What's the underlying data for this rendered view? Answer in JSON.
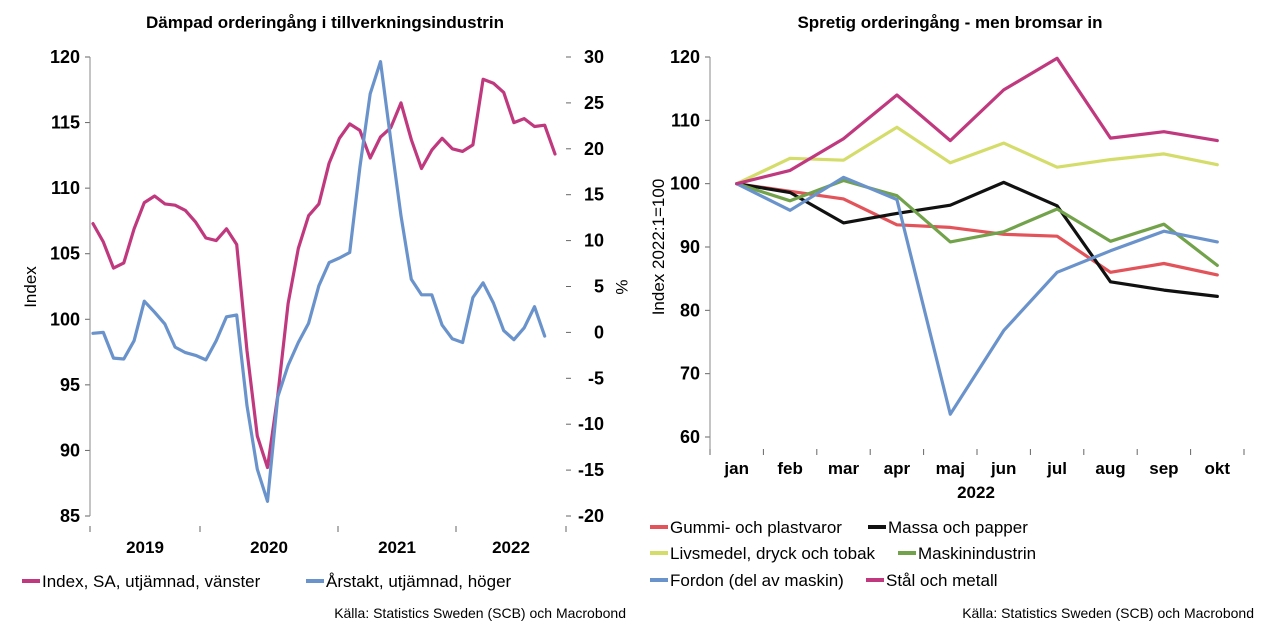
{
  "chart_data": [
    {
      "type": "line",
      "title": "Dämpad orderingång i tillverkningsindustrin",
      "ylabel": "Index",
      "y2label": "%",
      "ylim": [
        85,
        120
      ],
      "y2lim": [
        -20,
        30
      ],
      "yticks": [
        "120",
        "115",
        "110",
        "105",
        "100",
        "95",
        "90",
        "85"
      ],
      "y2ticks": [
        "30",
        "25",
        "20",
        "15",
        "10",
        "5",
        "0",
        "-5",
        "-10",
        "-15",
        "-20"
      ],
      "x_labels": [
        "2019",
        "2020",
        "2021",
        "2022"
      ],
      "series": [
        {
          "name": "Index, SA, utjämnad, vänster",
          "axis": "left",
          "color": "#c0397f",
          "values": [
            107.3,
            105.9,
            103.9,
            104.3,
            106.9,
            108.9,
            109.4,
            108.8,
            108.7,
            108.3,
            107.4,
            106.2,
            106.0,
            106.9,
            105.7,
            97.6,
            91.1,
            88.7,
            94.2,
            101.2,
            105.4,
            107.9,
            108.8,
            111.9,
            113.8,
            114.9,
            114.4,
            112.3,
            113.9,
            114.6,
            116.5,
            113.7,
            111.5,
            112.9,
            113.8,
            113.0,
            112.8,
            113.3,
            118.3,
            118.0,
            117.3,
            115.0,
            115.3,
            114.7,
            114.8,
            112.6
          ]
        },
        {
          "name": "Årstakt, utjämnad, höger",
          "axis": "right",
          "color": "#6a93cc",
          "values": [
            -0.1,
            0.0,
            -2.8,
            -2.9,
            -0.9,
            3.4,
            2.2,
            0.9,
            -1.6,
            -2.2,
            -2.5,
            -3.0,
            -0.9,
            1.7,
            1.9,
            -8.0,
            -14.9,
            -18.4,
            -7.0,
            -3.6,
            -1.1,
            1.0,
            5.1,
            7.6,
            8.1,
            8.7,
            18.0,
            26.0,
            29.5,
            21.0,
            12.7,
            5.8,
            4.1,
            4.1,
            0.8,
            -0.7,
            -1.1,
            3.8,
            5.4,
            3.2,
            0.2,
            -0.8,
            0.5,
            2.8,
            -0.4
          ]
        }
      ],
      "legend": "bottom",
      "source": "Källa: Statistics Sweden (SCB) och Macrobond"
    },
    {
      "type": "line",
      "title": "Spretig orderingång - men bromsar in",
      "ylabel": "Index 2022:1=100",
      "xlabel": "2022",
      "ylim": [
        60,
        120
      ],
      "yticks": [
        "120",
        "110",
        "100",
        "90",
        "80",
        "70",
        "60"
      ],
      "categories": [
        "jan",
        "feb",
        "mar",
        "apr",
        "maj",
        "jun",
        "jul",
        "aug",
        "sep",
        "okt"
      ],
      "series": [
        {
          "name": "Gummi- och plastvaror",
          "color": "#e2545a",
          "values": [
            100.0,
            98.8,
            97.6,
            93.5,
            93.1,
            92.0,
            91.7,
            86.0,
            87.4,
            85.6
          ]
        },
        {
          "name": "Massa och papper",
          "color": "#111111",
          "values": [
            100.0,
            98.6,
            93.8,
            95.3,
            96.6,
            100.2,
            96.5,
            84.5,
            83.2,
            82.2
          ]
        },
        {
          "name": "Livsmedel, dryck och tobak",
          "color": "#d4dc6a",
          "values": [
            100.0,
            104.0,
            103.7,
            108.9,
            103.3,
            106.4,
            102.6,
            103.8,
            104.7,
            103.0
          ]
        },
        {
          "name": "Maskinindustrin",
          "color": "#72a24a",
          "values": [
            100.0,
            97.3,
            100.5,
            98.1,
            90.8,
            92.4,
            96.0,
            90.9,
            93.6,
            87.1
          ]
        },
        {
          "name": "Fordon (del av maskin)",
          "color": "#6a93cc",
          "values": [
            100.0,
            95.8,
            101.0,
            97.5,
            63.6,
            76.8,
            86.0,
            89.4,
            92.5,
            90.8
          ]
        },
        {
          "name": "Stål och metall",
          "color": "#c0397f",
          "values": [
            100.0,
            102.1,
            107.1,
            114.0,
            106.8,
            114.8,
            119.8,
            107.2,
            108.2,
            106.8
          ]
        }
      ],
      "legend": "bottom",
      "source": "Källa: Statistics Sweden (SCB) och Macrobond"
    }
  ]
}
